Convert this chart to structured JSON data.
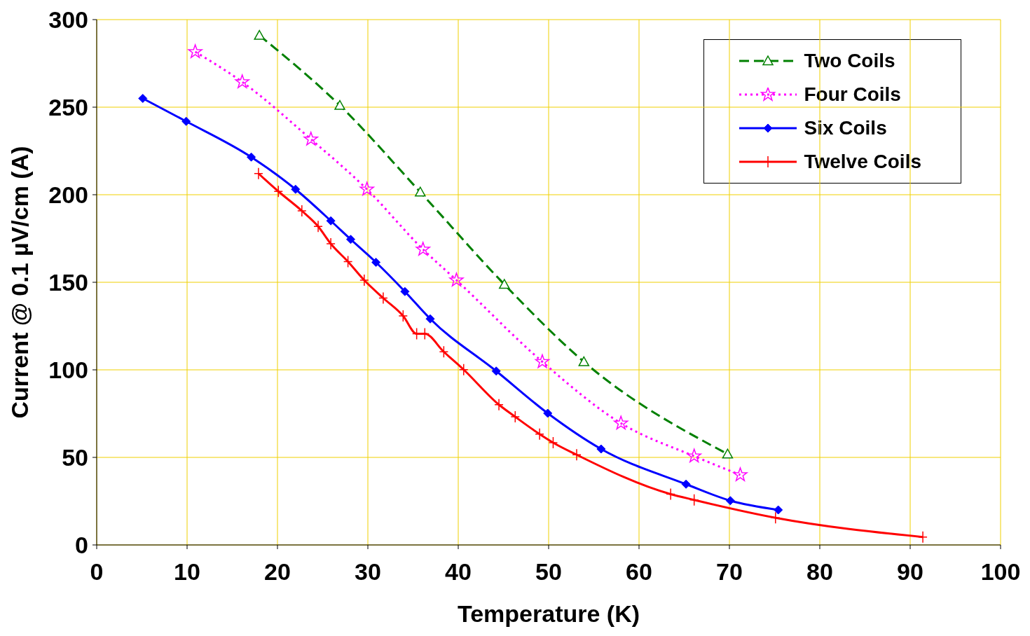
{
  "chart_data": {
    "type": "line",
    "xlabel": "Temperature (K)",
    "ylabel": "Current @ 0.1 µV/cm (A)",
    "xlim": [
      0,
      100
    ],
    "xticks": [
      0,
      10,
      20,
      30,
      40,
      50,
      60,
      70,
      80,
      90,
      100
    ],
    "ylim": [
      0,
      300
    ],
    "yticks": [
      0,
      50,
      100,
      150,
      200,
      250,
      300
    ],
    "grid": true,
    "legend": "top right",
    "series": [
      {
        "name": "Two Coils",
        "color": "#008000",
        "marker": "triangle",
        "line_style": "dashed",
        "x": [
          18.0,
          26.9,
          35.8,
          45.1,
          53.9,
          69.8
        ],
        "values": [
          291,
          251,
          201.5,
          148.8,
          104.6,
          51.9
        ]
      },
      {
        "name": "Four Coils",
        "color": "#ff00ff",
        "marker": "star",
        "line_style": "dotted",
        "x": [
          10.9,
          16.1,
          23.7,
          29.9,
          36.1,
          39.8,
          49.3,
          58.0,
          66.1,
          71.2
        ],
        "values": [
          281.6,
          264.4,
          231.7,
          203.1,
          168.8,
          151.2,
          104.6,
          69.5,
          50.7,
          40.0
        ]
      },
      {
        "name": "Six Coils",
        "color": "#0000ff",
        "marker": "diamond",
        "line_style": "solid",
        "x": [
          5.1,
          9.9,
          17.1,
          22.0,
          25.9,
          28.1,
          30.9,
          34.1,
          36.9,
          44.2,
          49.9,
          55.8,
          65.2,
          70.1,
          75.4
        ],
        "values": [
          255,
          241.9,
          221.5,
          203.1,
          185.1,
          174.5,
          161.4,
          144.7,
          129.1,
          99.3,
          75.2,
          54.8,
          34.7,
          25.3,
          20.0
        ]
      },
      {
        "name": "Twelve Coils",
        "color": "#ff0000",
        "marker": "cross",
        "line_style": "solid",
        "x": [
          17.9,
          20.1,
          22.7,
          24.5,
          25.9,
          27.8,
          29.6,
          31.7,
          33.9,
          35.4,
          36.3,
          38.4,
          40.6,
          44.5,
          46.3,
          49.0,
          50.5,
          53.1,
          63.5,
          66.1,
          75.1,
          91.4
        ],
        "values": [
          212.1,
          201.9,
          190.8,
          181.9,
          172,
          161.8,
          151.2,
          141,
          130.8,
          120.6,
          120.6,
          110.3,
          100.1,
          80.1,
          73.2,
          63.3,
          58.4,
          51.5,
          29,
          25.7,
          15.5,
          4.5
        ]
      }
    ]
  }
}
